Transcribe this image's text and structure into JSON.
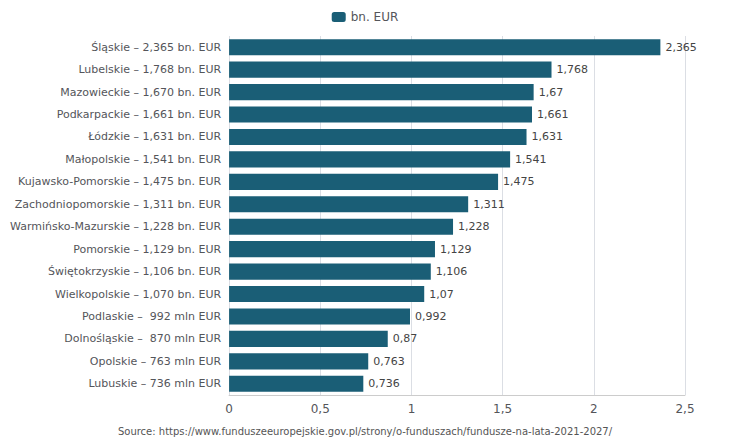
{
  "chart_data": {
    "type": "bar",
    "orientation": "horizontal",
    "categories": [
      "Lubuskie – 736 mln EUR",
      "Opolskie – 763 mln EUR",
      "Dolnośląskie –  870 mln EUR",
      "Podlaskie –  992 mln EUR",
      "Wielkopolskie – 1,070 bn. EUR",
      "Świętokrzyskie – 1,106 bn. EUR",
      "Pomorskie – 1,129 bn. EUR",
      "Warmińsko-Mazurskie – 1,228 bn. EUR",
      "Zachodniopomorskie – 1,311 bn. EUR",
      "Kujawsko-Pomorskie – 1,475 bn. EUR",
      "Małopolskie – 1,541 bn. EUR",
      "Łódzkie – 1,631 bn. EUR",
      "Podkarpackie – 1,661 bn. EUR",
      "Mazowieckie – 1,670 bn. EUR",
      "Lubelskie – 1,768 bn. EUR",
      "Śląskie – 2,365 bn. EUR"
    ],
    "series": [
      {
        "name": "bn. EUR",
        "color": "#1a5e76",
        "values": [
          0.736,
          0.763,
          0.87,
          0.992,
          1.07,
          1.106,
          1.129,
          1.228,
          1.311,
          1.475,
          1.541,
          1.631,
          1.661,
          1.67,
          1.768,
          2.365
        ],
        "value_labels": [
          "0,736",
          "0,763",
          "0,87",
          "0,992",
          "1,07",
          "1,106",
          "1,129",
          "1,228",
          "1,311",
          "1,475",
          "1,541",
          "1,631",
          "1,661",
          "1,67",
          "1,768",
          "2,365"
        ]
      }
    ],
    "xlim": [
      0,
      2.5
    ],
    "xticks": [
      0,
      {
        "value": 0.5,
        "label": "0,5"
      },
      1,
      {
        "value": 1.5,
        "label": "1,5"
      },
      2,
      {
        "value": 2.5,
        "label": "2,5"
      }
    ],
    "grid": true,
    "legend": "top",
    "data_labels": true,
    "annotations": [
      "Source: https://www.funduszeeuropejskie.gov.pl/strony/o-funduszach/fundusze-na-lata-2021-2027/"
    ]
  }
}
